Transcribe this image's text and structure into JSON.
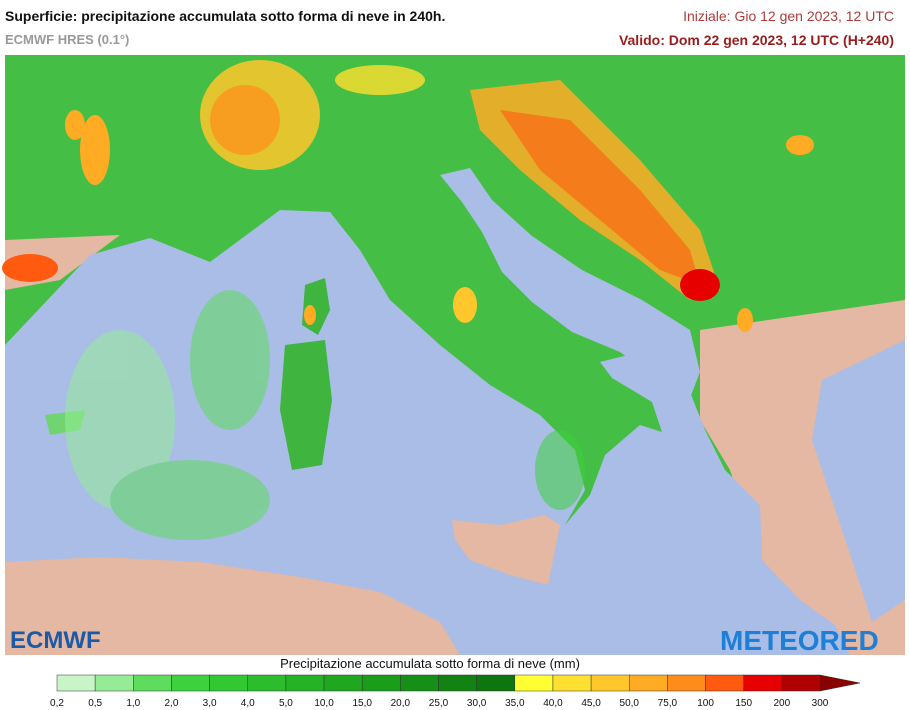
{
  "header": {
    "title": "Superficie: precipitazione accumulata sotto forma di neve in 240h.",
    "subtitle": "ECMWF HRES (0.1°)",
    "init": "Iniziale: Gio 12 gen 2023, 12 UTC",
    "valid": "Valido: Dom 22 gen 2023, 12 UTC (H+240)"
  },
  "logos": {
    "left": "ECMWF",
    "right": "METEORED"
  },
  "legend": {
    "title": "Precipitazione accumulata sotto forma di neve (mm)",
    "labels": [
      "0,2",
      "0,5",
      "1,0",
      "2,0",
      "3,0",
      "4,0",
      "5,0",
      "10,0",
      "15,0",
      "20,0",
      "25,0",
      "30,0",
      "35,0",
      "40,0",
      "45,0",
      "50,0",
      "75,0",
      "100",
      "150",
      "200",
      "300"
    ],
    "colors": [
      "#c8f5c8",
      "#96ec96",
      "#5ddc5d",
      "#3dd13d",
      "#32c832",
      "#2bbd2b",
      "#25b325",
      "#1fa81f",
      "#1a9e1a",
      "#158f15",
      "#128312",
      "#0e760e",
      "#ffff33",
      "#ffe030",
      "#ffc72b",
      "#ffab24",
      "#ff8c1a",
      "#ff5a10",
      "#e60000",
      "#b00000"
    ],
    "arrow_color": "#8b0000"
  }
}
